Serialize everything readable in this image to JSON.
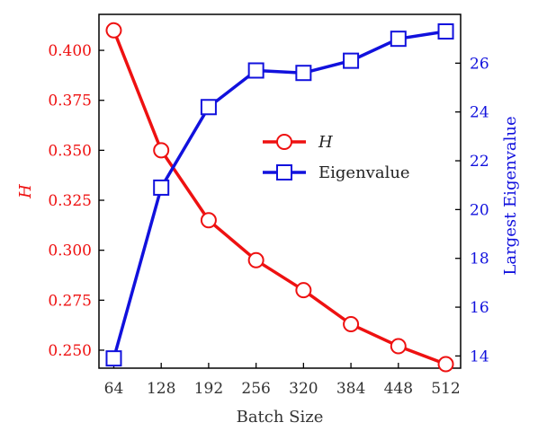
{
  "chart_data": {
    "type": "line",
    "x": [
      64,
      128,
      192,
      256,
      320,
      384,
      448,
      512
    ],
    "xticks": [
      "64",
      "128",
      "192",
      "256",
      "320",
      "384",
      "448",
      "512"
    ],
    "xlim": [
      44,
      532
    ],
    "xlabel": "Batch Size",
    "y_left": {
      "label": "H",
      "lim": [
        0.241,
        0.418
      ],
      "ticks": [
        "0.250",
        "0.275",
        "0.300",
        "0.325",
        "0.350",
        "0.375",
        "0.400"
      ],
      "tick_values": [
        0.25,
        0.275,
        0.3,
        0.325,
        0.35,
        0.375,
        0.4
      ],
      "color": "#ee1111"
    },
    "y_right": {
      "label": "Largest Eigenvalue",
      "lim": [
        13.5,
        28.0
      ],
      "ticks": [
        "14",
        "16",
        "18",
        "20",
        "22",
        "24",
        "26"
      ],
      "tick_values": [
        14,
        16,
        18,
        20,
        22,
        24,
        26
      ],
      "color": "#1111dd"
    },
    "series": [
      {
        "name": "H",
        "axis": "left",
        "marker": "circle",
        "color": "#ee1111",
        "values": [
          0.41,
          0.35,
          0.315,
          0.295,
          0.28,
          0.263,
          0.252,
          0.243
        ]
      },
      {
        "name": "Eigenvalue",
        "axis": "right",
        "marker": "square",
        "color": "#1111dd",
        "values": [
          13.9,
          20.9,
          24.2,
          25.7,
          25.6,
          26.1,
          27.0,
          27.3
        ]
      }
    ],
    "legend": {
      "placement": "center-right",
      "entries": [
        "H",
        "Eigenvalue"
      ]
    },
    "grid": false
  }
}
